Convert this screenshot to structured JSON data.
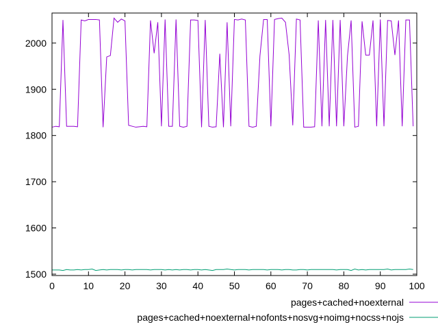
{
  "chart_data": {
    "type": "line",
    "title": "",
    "xlabel": "",
    "ylabel": "",
    "xlim": [
      0,
      100
    ],
    "ylim": [
      1497,
      2065
    ],
    "xticks": [
      0,
      10,
      20,
      30,
      40,
      50,
      60,
      70,
      80,
      90,
      100
    ],
    "yticks": [
      1500,
      1600,
      1700,
      1800,
      1900,
      2000
    ],
    "grid": false,
    "legend_position": "bottom-right",
    "series": [
      {
        "name": "pages+cached+noexternal",
        "color": "#9400d3",
        "x": [
          0,
          1,
          2,
          3,
          4,
          5,
          6,
          7,
          8,
          9,
          10,
          11,
          12,
          13,
          14,
          15,
          16,
          17,
          18,
          19,
          20,
          21,
          22,
          23,
          24,
          25,
          26,
          27,
          28,
          29,
          30,
          31,
          32,
          33,
          34,
          35,
          36,
          37,
          38,
          39,
          40,
          41,
          42,
          43,
          44,
          45,
          46,
          47,
          48,
          49,
          50,
          51,
          52,
          53,
          54,
          55,
          56,
          57,
          58,
          59,
          60,
          61,
          62,
          63,
          64,
          65,
          66,
          67,
          68,
          69,
          70,
          71,
          72,
          73,
          74,
          75,
          76,
          77,
          78,
          79,
          80,
          81,
          82,
          83,
          84,
          85,
          86,
          87,
          88,
          89,
          90,
          91,
          92,
          93,
          94,
          95,
          96,
          97,
          98,
          99
        ],
        "values": [
          1818,
          1820,
          1819,
          2050,
          1820,
          1820,
          1820,
          1819,
          2050,
          2048,
          2051,
          2051,
          2051,
          2050,
          1818,
          1970,
          1973,
          2054,
          2045,
          2052,
          2048,
          1822,
          1820,
          1818,
          1819,
          1820,
          1819,
          2049,
          1978,
          2045,
          1820,
          2051,
          1820,
          1820,
          2051,
          1820,
          1818,
          1820,
          2050,
          2050,
          2049,
          1818,
          2050,
          1820,
          1818,
          1819,
          1977,
          1818,
          2045,
          1820,
          2051,
          2050,
          2052,
          2050,
          1820,
          1818,
          1820,
          1972,
          2051,
          2051,
          1820,
          2051,
          2053,
          2054,
          2045,
          1975,
          1822,
          2052,
          2050,
          1818,
          1818,
          1818,
          1819,
          2049,
          1820,
          2050,
          1820,
          2050,
          1820,
          2050,
          1820,
          1972,
          2049,
          1818,
          1820,
          2047,
          1974,
          1974,
          2049,
          1820,
          2051,
          1820,
          2049,
          2048,
          1974,
          2049,
          1820,
          2050,
          2050,
          1820
        ]
      },
      {
        "name": "pages+cached+noexternal+nofonts+nosvg+noimg+nocss+nojs",
        "color": "#009e73",
        "x": [
          0,
          1,
          2,
          3,
          4,
          5,
          6,
          7,
          8,
          9,
          10,
          11,
          12,
          13,
          14,
          15,
          16,
          17,
          18,
          19,
          20,
          21,
          22,
          23,
          24,
          25,
          26,
          27,
          28,
          29,
          30,
          31,
          32,
          33,
          34,
          35,
          36,
          37,
          38,
          39,
          40,
          41,
          42,
          43,
          44,
          45,
          46,
          47,
          48,
          49,
          50,
          51,
          52,
          53,
          54,
          55,
          56,
          57,
          58,
          59,
          60,
          61,
          62,
          63,
          64,
          65,
          66,
          67,
          68,
          69,
          70,
          71,
          72,
          73,
          74,
          75,
          76,
          77,
          78,
          79,
          80,
          81,
          82,
          83,
          84,
          85,
          86,
          87,
          88,
          89,
          90,
          91,
          92,
          93,
          94,
          95,
          96,
          97,
          98,
          99
        ],
        "values": [
          1509,
          1509,
          1509,
          1508,
          1510,
          1509,
          1509,
          1510,
          1509,
          1510,
          1510,
          1511,
          1508,
          1509,
          1510,
          1509,
          1510,
          1510,
          1510,
          1509,
          1510,
          1510,
          1509,
          1510,
          1510,
          1510,
          1510,
          1509,
          1510,
          1510,
          1510,
          1509,
          1510,
          1509,
          1510,
          1509,
          1510,
          1510,
          1509,
          1510,
          1510,
          1509,
          1510,
          1509,
          1508,
          1510,
          1510,
          1510,
          1511,
          1510,
          1509,
          1510,
          1510,
          1510,
          1509,
          1510,
          1510,
          1510,
          1510,
          1509,
          1510,
          1510,
          1510,
          1509,
          1510,
          1510,
          1509,
          1509,
          1510,
          1510,
          1509,
          1510,
          1510,
          1510,
          1510,
          1510,
          1510,
          1510,
          1509,
          1510,
          1510,
          1510,
          1508,
          1511,
          1509,
          1510,
          1509,
          1510,
          1510,
          1510,
          1510,
          1510,
          1511,
          1509,
          1510,
          1510,
          1510,
          1510,
          1511,
          1510
        ]
      }
    ]
  }
}
